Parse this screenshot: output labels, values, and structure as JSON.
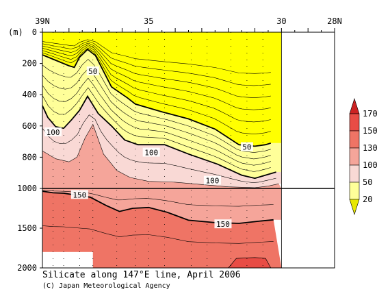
{
  "caption": {
    "title": "Silicate along 147°E line, April 2006",
    "credit": "(C) Japan Meteorological Agency"
  },
  "chart_data": {
    "type": "contour",
    "title": "Silicate along 147°E line, April 2006",
    "x_axis": {
      "direction": "latitude decreasing left to right",
      "range": [
        39,
        28
      ],
      "ticks": [
        "39N",
        "35",
        "30",
        "28N"
      ],
      "tick_values": [
        39,
        35,
        30,
        28
      ]
    },
    "y_axis": {
      "unit": "(m)",
      "inverted": true,
      "upper_panel": {
        "range": [
          0,
          1000
        ],
        "ticks": [
          "0",
          "200",
          "400",
          "600",
          "800",
          "1000"
        ]
      },
      "lower_panel": {
        "range": [
          1000,
          2000
        ],
        "ticks": [
          "1000",
          "1500",
          "2000"
        ]
      }
    },
    "data_extent_lat": [
      39,
      30
    ],
    "colorbar": {
      "levels": [
        20,
        50,
        100,
        130,
        150,
        170
      ],
      "labels": [
        "170",
        "150",
        "130",
        "100",
        "50",
        "20"
      ],
      "colors": [
        "#f5f5f5",
        "#ffff00",
        "#ffff99",
        "#f9d9d5",
        "#f5a59a",
        "#ef7465",
        "#e84c45"
      ],
      "arrow_top": "#cc2222",
      "arrow_bottom": "#e8e800"
    },
    "contour_labels": [
      {
        "text": "50",
        "lat": 37.1,
        "depth": 250
      },
      {
        "text": "100",
        "lat": 38.6,
        "depth": 640
      },
      {
        "text": "100",
        "lat": 34.9,
        "depth": 770
      },
      {
        "text": "50",
        "lat": 31.3,
        "depth": 735
      },
      {
        "text": "100",
        "lat": 32.6,
        "depth": 950
      },
      {
        "text": "150",
        "lat": 37.6,
        "depth": 1080
      },
      {
        "text": "150",
        "lat": 32.2,
        "depth": 1450
      }
    ],
    "bold_contours": {
      "c50": [
        [
          39,
          145
        ],
        [
          38.5,
          180
        ],
        [
          38,
          215
        ],
        [
          37.8,
          225
        ],
        [
          37.6,
          160
        ],
        [
          37.3,
          110
        ],
        [
          37,
          150
        ],
        [
          36.4,
          350
        ],
        [
          35.8,
          420
        ],
        [
          35.5,
          460
        ],
        [
          34.5,
          510
        ],
        [
          33.5,
          555
        ],
        [
          32.5,
          620
        ],
        [
          31.6,
          720
        ],
        [
          31,
          730
        ],
        [
          30.6,
          720
        ],
        [
          30.4,
          710
        ]
      ],
      "c100": [
        [
          39,
          470
        ],
        [
          38.8,
          545
        ],
        [
          38.5,
          605
        ],
        [
          38.2,
          615
        ],
        [
          37.9,
          560
        ],
        [
          37.6,
          500
        ],
        [
          37.3,
          410
        ],
        [
          36.9,
          520
        ],
        [
          36.4,
          600
        ],
        [
          35.9,
          690
        ],
        [
          35.4,
          720
        ],
        [
          34.4,
          720
        ],
        [
          33.5,
          780
        ],
        [
          32.4,
          845
        ],
        [
          31.5,
          915
        ],
        [
          31,
          935
        ],
        [
          30.5,
          910
        ],
        [
          30.2,
          895
        ]
      ],
      "c150": [
        [
          39,
          1035
        ],
        [
          38.6,
          1055
        ],
        [
          38.2,
          1060
        ],
        [
          37.8,
          1080
        ],
        [
          37.2,
          1110
        ],
        [
          36.6,
          1215
        ],
        [
          36.1,
          1290
        ],
        [
          35.6,
          1250
        ],
        [
          35,
          1240
        ],
        [
          34.3,
          1300
        ],
        [
          33.5,
          1400
        ],
        [
          32.5,
          1430
        ],
        [
          31.6,
          1440
        ],
        [
          30.8,
          1410
        ],
        [
          30.3,
          1395
        ]
      ]
    },
    "upper_band_boundaries": {
      "yellow_lower_edge_c20": [
        [
          39,
          0
        ],
        [
          38.2,
          0
        ],
        [
          37.6,
          0
        ],
        [
          37.2,
          0
        ],
        [
          36.8,
          0
        ],
        [
          36.4,
          0
        ],
        [
          36,
          0
        ],
        [
          35.5,
          0
        ],
        [
          35,
          0
        ],
        [
          34.5,
          0
        ],
        [
          34,
          0
        ],
        [
          33.5,
          0
        ],
        [
          33,
          0
        ],
        [
          32.5,
          0
        ],
        [
          32,
          0
        ],
        [
          31.5,
          0
        ],
        [
          31,
          0
        ],
        [
          30.5,
          0
        ],
        [
          30.1,
          0
        ]
      ],
      "pink_upper_edge_c130": [
        [
          39,
          760
        ],
        [
          38.5,
          810
        ],
        [
          38,
          830
        ],
        [
          37.7,
          800
        ],
        [
          37.4,
          680
        ],
        [
          37.1,
          590
        ],
        [
          36.7,
          780
        ],
        [
          36.2,
          885
        ],
        [
          35.7,
          930
        ],
        [
          35,
          955
        ],
        [
          34,
          960
        ],
        [
          33,
          975
        ],
        [
          32,
          990
        ],
        [
          31,
          995
        ],
        [
          30.5,
          985
        ],
        [
          30.1,
          970
        ]
      ]
    },
    "lower_band_boundaries": {
      "c130_top": [
        [
          39,
          1000
        ],
        [
          30.1,
          1000
        ]
      ],
      "c150": [
        [
          39,
          1035
        ],
        [
          38.6,
          1055
        ],
        [
          38.2,
          1060
        ],
        [
          37.8,
          1080
        ],
        [
          37.2,
          1110
        ],
        [
          36.6,
          1215
        ],
        [
          36.1,
          1290
        ],
        [
          35.6,
          1250
        ],
        [
          35,
          1240
        ],
        [
          34.3,
          1300
        ],
        [
          33.5,
          1400
        ],
        [
          32.5,
          1430
        ],
        [
          31.6,
          1440
        ],
        [
          30.8,
          1410
        ],
        [
          30.3,
          1395
        ]
      ],
      "c170_bottom": [
        [
          32,
          2000
        ],
        [
          31.7,
          1880
        ],
        [
          31,
          1870
        ],
        [
          30.6,
          1880
        ],
        [
          30.4,
          2000
        ]
      ]
    },
    "missing_data_box": {
      "lat_range": [
        39,
        37.1
      ],
      "depth_range": [
        1800,
        2000
      ]
    }
  }
}
